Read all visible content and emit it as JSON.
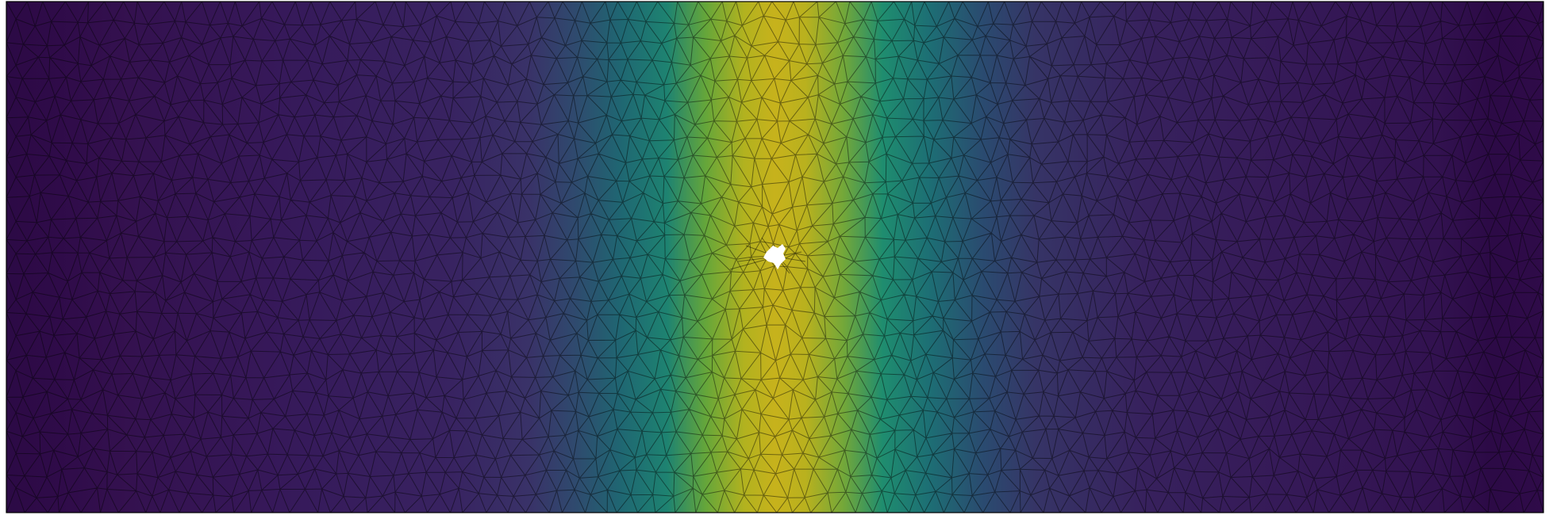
{
  "colormap": {
    "name": "viridis",
    "stops": [
      "#440154",
      "#3b528b",
      "#21918c",
      "#5ec962",
      "#fde725"
    ]
  },
  "field": {
    "description_peak_color": "#c9b21c",
    "edge_color": "#2e0f47",
    "center_color": "#3a2a6a"
  },
  "mesh": {
    "type": "triangular",
    "line_color": "#000000"
  },
  "hole": {
    "fill": "#ffffff"
  },
  "frame": {
    "stroke": "#000000"
  }
}
